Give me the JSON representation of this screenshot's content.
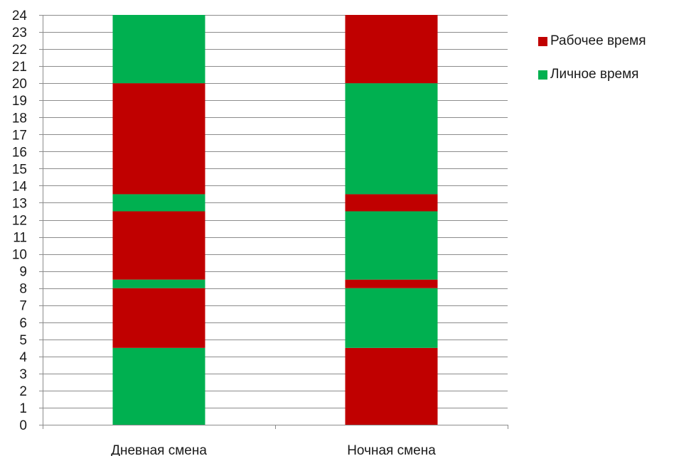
{
  "chart_data": {
    "type": "bar",
    "stacked": true,
    "title": "",
    "xlabel": "",
    "ylabel": "",
    "ylim": [
      0,
      24
    ],
    "y_ticks": [
      0,
      1,
      2,
      3,
      4,
      5,
      6,
      7,
      8,
      9,
      10,
      11,
      12,
      13,
      14,
      15,
      16,
      17,
      18,
      19,
      20,
      21,
      22,
      23,
      24
    ],
    "grid": true,
    "legend_position": "right",
    "categories": [
      "Дневная смена",
      "Ночная смена"
    ],
    "legend": [
      {
        "label": "Рабочее время",
        "color": "#c00000"
      },
      {
        "label": "Личное время",
        "color": "#00b050"
      }
    ],
    "segments": [
      [
        {
          "series": "Личное время",
          "from": 0,
          "to": 4.5
        },
        {
          "series": "Рабочее время",
          "from": 4.5,
          "to": 8
        },
        {
          "series": "Личное время",
          "from": 8,
          "to": 8.5
        },
        {
          "series": "Рабочее время",
          "from": 8.5,
          "to": 12.5
        },
        {
          "series": "Личное время",
          "from": 12.5,
          "to": 13.5
        },
        {
          "series": "Рабочее время",
          "from": 13.5,
          "to": 20
        },
        {
          "series": "Личное время",
          "from": 20,
          "to": 24
        }
      ],
      [
        {
          "series": "Рабочее время",
          "from": 0,
          "to": 4.5
        },
        {
          "series": "Личное время",
          "from": 4.5,
          "to": 8
        },
        {
          "series": "Рабочее время",
          "from": 8,
          "to": 8.5
        },
        {
          "series": "Личное время",
          "from": 8.5,
          "to": 12.5
        },
        {
          "series": "Рабочее время",
          "from": 12.5,
          "to": 13.5
        },
        {
          "series": "Личное время",
          "from": 13.5,
          "to": 20
        },
        {
          "series": "Рабочее время",
          "from": 20,
          "to": 24
        }
      ]
    ]
  }
}
